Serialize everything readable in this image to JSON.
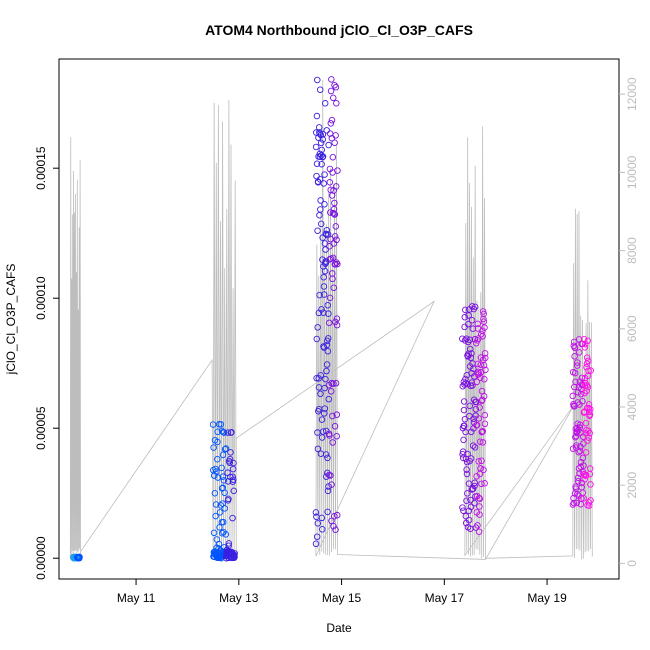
{
  "chart_data": {
    "type": "scatter",
    "title": "ATOM4 Northbound jClO_Cl_O3P_CAFS",
    "xlabel": "Date",
    "ylabel": "jClO_Cl_O3P_CAFS",
    "x_ticks": [
      "May 11",
      "May 13",
      "May 15",
      "May 17",
      "May 19"
    ],
    "x_tick_days": [
      11,
      13,
      15,
      17,
      19
    ],
    "xlim_days": [
      9.5,
      20.4
    ],
    "y_ticks": [
      "0.00000",
      "0.00005",
      "0.00010",
      "0.00015"
    ],
    "y_tick_values": [
      0,
      5e-05,
      0.0001,
      0.00015
    ],
    "ylim": [
      -8e-06,
      0.000192
    ],
    "y2_ticks": [
      "0",
      "2000",
      "4000",
      "6000",
      "8000",
      "10000",
      "12000"
    ],
    "y2_tick_values": [
      0,
      2000,
      4000,
      6000,
      8000,
      10000,
      12000
    ],
    "y2lim": [
      -400,
      12900
    ],
    "colors": {
      "altitude_line": "#bdbdbd",
      "axis": "#000000",
      "right_axis": "#bdbdbd",
      "series_gradient": [
        "#1aa0ee",
        "#0055ff",
        "#3a20e0",
        "#7a10e0",
        "#c010e8",
        "#ff10e8"
      ]
    },
    "series": [
      {
        "type": "points",
        "marker": "open-circle",
        "flights": [
          {
            "day_start": 9.78,
            "day_end": 9.9,
            "y_min": 0,
            "y_max": 5e-07,
            "n": 30
          },
          {
            "day_start": 12.5,
            "day_end": 12.92,
            "y_min": 0,
            "y_max": 5.2e-05,
            "n": 140
          },
          {
            "day_start": 14.5,
            "day_end": 14.92,
            "y_min": 5e-06,
            "y_max": 0.000185,
            "n": 170
          },
          {
            "day_start": 17.35,
            "day_end": 17.8,
            "y_min": 1e-05,
            "y_max": 9.7e-05,
            "n": 150
          },
          {
            "day_start": 19.5,
            "day_end": 19.85,
            "y_min": 2e-05,
            "y_max": 8.6e-05,
            "n": 120
          }
        ]
      },
      {
        "type": "line",
        "axis": "right",
        "flights": [
          {
            "day_start": 9.72,
            "day_end": 9.92,
            "alt_max": 11300
          },
          {
            "day_start": 12.5,
            "day_end": 12.95,
            "alt_max": 12200
          },
          {
            "day_start": 14.5,
            "day_end": 14.92,
            "alt_max": 12800
          },
          {
            "day_start": 17.4,
            "day_end": 17.8,
            "alt_max": 11200
          },
          {
            "day_start": 19.5,
            "day_end": 19.88,
            "alt_max": 9400
          }
        ],
        "transits": [
          {
            "day_start": 9.92,
            "alt_start": 300,
            "day_end": 12.48,
            "alt_end": 5200
          },
          {
            "day_start": 12.95,
            "alt_start": 3200,
            "day_end": 16.8,
            "alt_end": 6700
          },
          {
            "day_start": 17.8,
            "alt_start": 100,
            "day_end": 19.55,
            "alt_end": 4100
          }
        ]
      }
    ],
    "grid": false,
    "legend": "none"
  }
}
